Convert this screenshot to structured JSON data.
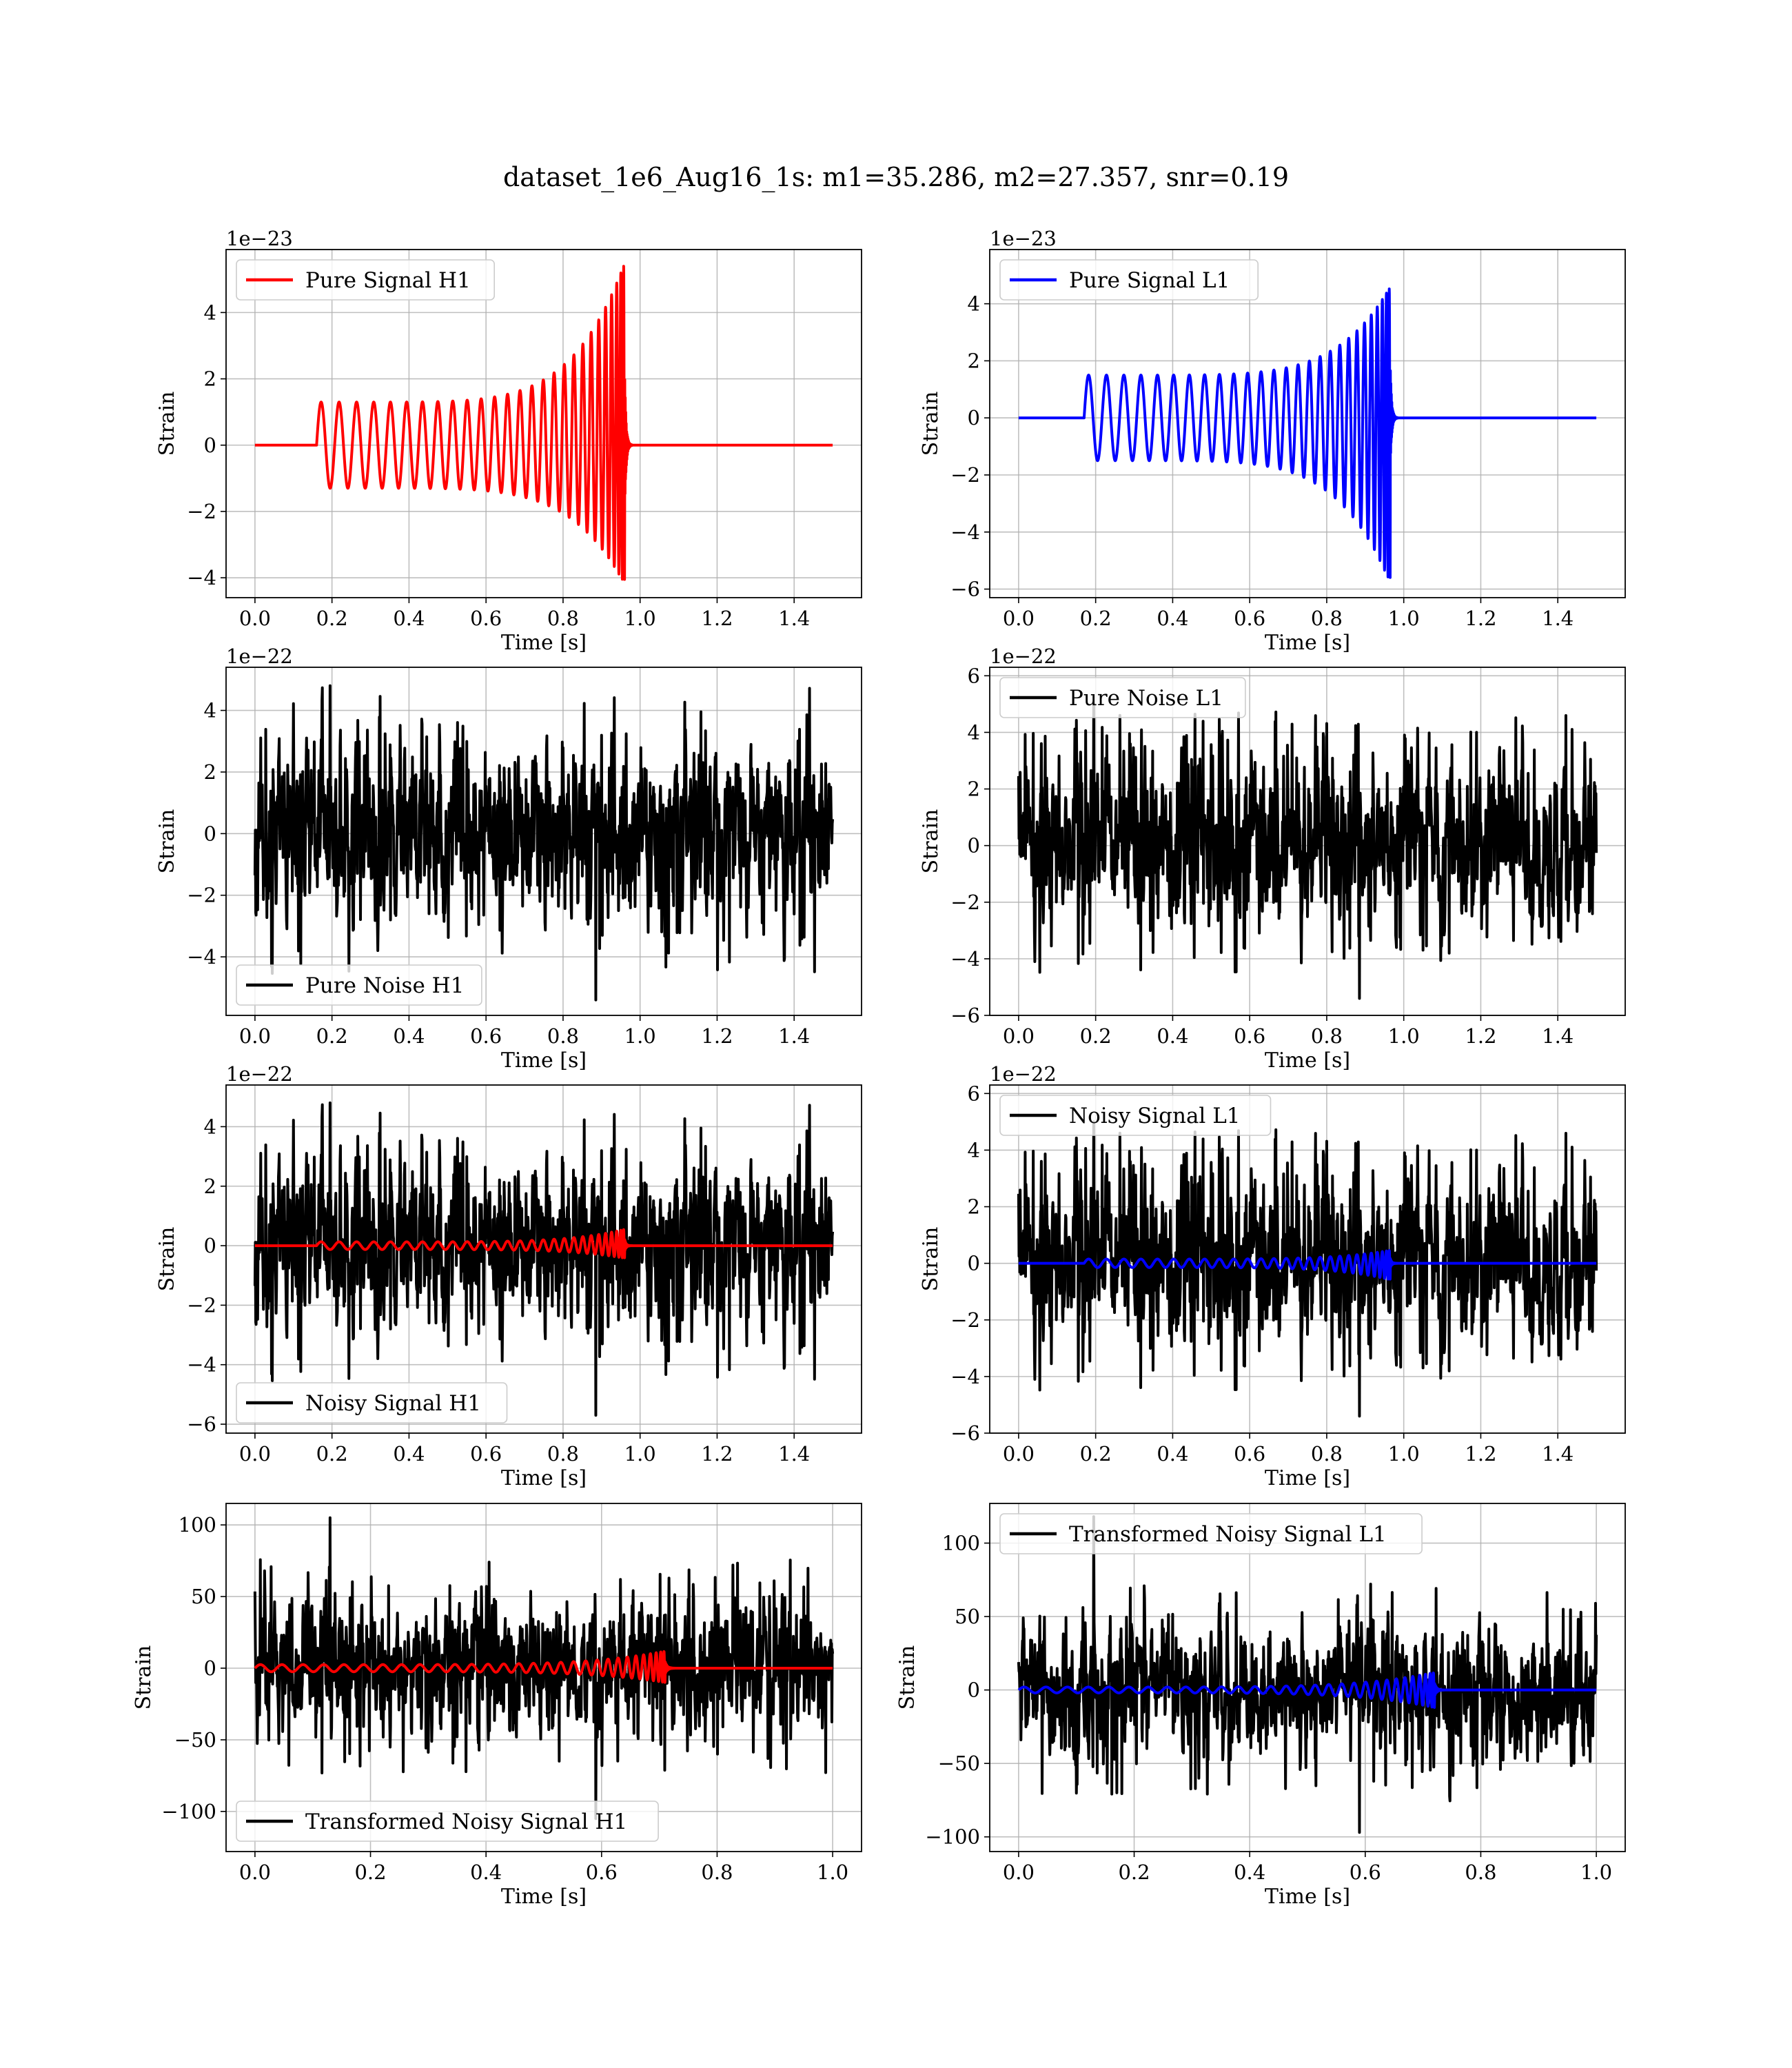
{
  "figure": {
    "title": "dataset_1e6_Aug16_1s: m1=35.286, m2=27.357, snr=0.19"
  },
  "chart_data": [
    {
      "type": "line",
      "title": "",
      "xlabel": "Time [s]",
      "ylabel": "Strain",
      "offset_text": "1e−23",
      "xlim": [
        -0.075,
        1.575
      ],
      "ylim": [
        -4.6,
        5.9
      ],
      "xticks": [
        0.0,
        0.2,
        0.4,
        0.6,
        0.8,
        1.0,
        1.2,
        1.4
      ],
      "xtick_labels": [
        "0.0",
        "0.2",
        "0.4",
        "0.6",
        "0.8",
        "1.0",
        "1.2",
        "1.4"
      ],
      "yticks": [
        -4,
        -2,
        0,
        2,
        4
      ],
      "ytick_labels": [
        "−4",
        "−2",
        "0",
        "2",
        "4"
      ],
      "grid": true,
      "legend_position": "upper left",
      "series": [
        {
          "name": "Pure Signal H1",
          "color": "#ff0000",
          "kind": "chirp",
          "t_start": 0.16,
          "t_merge": 0.96,
          "t_end": 1.5,
          "amp_start": 1.3,
          "amp_peak": 5.5,
          "amp_min_peak": -4.2,
          "cycles": 27
        }
      ]
    },
    {
      "type": "line",
      "title": "",
      "xlabel": "Time [s]",
      "ylabel": "Strain",
      "offset_text": "1e−23",
      "xlim": [
        -0.075,
        1.575
      ],
      "ylim": [
        -6.3,
        5.9
      ],
      "xticks": [
        0.0,
        0.2,
        0.4,
        0.6,
        0.8,
        1.0,
        1.2,
        1.4
      ],
      "xtick_labels": [
        "0.0",
        "0.2",
        "0.4",
        "0.6",
        "0.8",
        "1.0",
        "1.2",
        "1.4"
      ],
      "yticks": [
        -6,
        -4,
        -2,
        0,
        2,
        4
      ],
      "ytick_labels": [
        "−6",
        "−4",
        "−2",
        "0",
        "2",
        "4"
      ],
      "grid": true,
      "legend_position": "upper left",
      "series": [
        {
          "name": "Pure Signal L1",
          "color": "#0000ff",
          "kind": "chirp",
          "t_start": 0.17,
          "t_merge": 0.965,
          "t_end": 1.5,
          "amp_start": 1.5,
          "amp_peak": 4.6,
          "amp_min_peak": -5.8,
          "cycles": 27
        }
      ]
    },
    {
      "type": "line",
      "title": "",
      "xlabel": "Time [s]",
      "ylabel": "Strain",
      "offset_text": "1e−22",
      "xlim": [
        -0.075,
        1.575
      ],
      "ylim": [
        -5.9,
        5.4
      ],
      "xticks": [
        0.0,
        0.2,
        0.4,
        0.6,
        0.8,
        1.0,
        1.2,
        1.4
      ],
      "xtick_labels": [
        "0.0",
        "0.2",
        "0.4",
        "0.6",
        "0.8",
        "1.0",
        "1.2",
        "1.4"
      ],
      "yticks": [
        -4,
        -2,
        0,
        2,
        4
      ],
      "ytick_labels": [
        "−4",
        "−2",
        "0",
        "2",
        "4"
      ],
      "grid": true,
      "legend_position": "lower left",
      "series": [
        {
          "name": "Pure Noise H1",
          "color": "#000000",
          "kind": "noise",
          "t_end": 1.5,
          "amp": 2.4,
          "max": 4.8,
          "min": -5.4,
          "seed": 11
        }
      ]
    },
    {
      "type": "line",
      "title": "",
      "xlabel": "Time [s]",
      "ylabel": "Strain",
      "offset_text": "1e−22",
      "xlim": [
        -0.075,
        1.575
      ],
      "ylim": [
        -6.0,
        6.3
      ],
      "xticks": [
        0.0,
        0.2,
        0.4,
        0.6,
        0.8,
        1.0,
        1.2,
        1.4
      ],
      "xtick_labels": [
        "0.0",
        "0.2",
        "0.4",
        "0.6",
        "0.8",
        "1.0",
        "1.2",
        "1.4"
      ],
      "yticks": [
        -6,
        -4,
        -2,
        0,
        2,
        4,
        6
      ],
      "ytick_labels": [
        "−6",
        "−4",
        "−2",
        "0",
        "2",
        "4",
        "6"
      ],
      "grid": true,
      "legend_position": "upper left",
      "series": [
        {
          "name": "Pure Noise L1",
          "color": "#000000",
          "kind": "noise",
          "t_end": 1.5,
          "amp": 2.5,
          "max": 5.0,
          "min": -5.4,
          "seed": 23
        }
      ]
    },
    {
      "type": "line",
      "title": "",
      "xlabel": "Time [s]",
      "ylabel": "Strain",
      "offset_text": "1e−22",
      "xlim": [
        -0.075,
        1.575
      ],
      "ylim": [
        -6.3,
        5.4
      ],
      "xticks": [
        0.0,
        0.2,
        0.4,
        0.6,
        0.8,
        1.0,
        1.2,
        1.4
      ],
      "xtick_labels": [
        "0.0",
        "0.2",
        "0.4",
        "0.6",
        "0.8",
        "1.0",
        "1.2",
        "1.4"
      ],
      "yticks": [
        -6,
        -4,
        -2,
        0,
        2,
        4
      ],
      "ytick_labels": [
        "−6",
        "−4",
        "−2",
        "0",
        "2",
        "4"
      ],
      "grid": true,
      "legend_position": "lower left",
      "series": [
        {
          "name": "Noisy Signal H1",
          "color": "#000000",
          "kind": "noise",
          "t_end": 1.5,
          "amp": 2.4,
          "max": 4.8,
          "min": -5.7,
          "seed": 11
        },
        {
          "name": "",
          "color": "#ff0000",
          "kind": "chirp",
          "t_start": 0.16,
          "t_merge": 0.96,
          "t_end": 1.5,
          "amp_start": 0.13,
          "amp_peak": 0.55,
          "amp_min_peak": -0.42,
          "cycles": 27
        }
      ]
    },
    {
      "type": "line",
      "title": "",
      "xlabel": "Time [s]",
      "ylabel": "Strain",
      "offset_text": "1e−22",
      "xlim": [
        -0.075,
        1.575
      ],
      "ylim": [
        -6.0,
        6.3
      ],
      "xticks": [
        0.0,
        0.2,
        0.4,
        0.6,
        0.8,
        1.0,
        1.2,
        1.4
      ],
      "xtick_labels": [
        "0.0",
        "0.2",
        "0.4",
        "0.6",
        "0.8",
        "1.0",
        "1.2",
        "1.4"
      ],
      "yticks": [
        -6,
        -4,
        -2,
        0,
        2,
        4,
        6
      ],
      "ytick_labels": [
        "−6",
        "−4",
        "−2",
        "0",
        "2",
        "4",
        "6"
      ],
      "grid": true,
      "legend_position": "upper left",
      "series": [
        {
          "name": "Noisy Signal L1",
          "color": "#000000",
          "kind": "noise",
          "t_end": 1.5,
          "amp": 2.5,
          "max": 5.0,
          "min": -5.4,
          "seed": 23
        },
        {
          "name": "",
          "color": "#0000ff",
          "kind": "chirp",
          "t_start": 0.17,
          "t_merge": 0.965,
          "t_end": 1.5,
          "amp_start": 0.15,
          "amp_peak": 0.46,
          "amp_min_peak": -0.58,
          "cycles": 27
        }
      ]
    },
    {
      "type": "line",
      "title": "",
      "xlabel": "Time [s]",
      "ylabel": "Strain",
      "offset_text": "",
      "xlim": [
        -0.05,
        1.05
      ],
      "ylim": [
        -128,
        115
      ],
      "xticks": [
        0.0,
        0.2,
        0.4,
        0.6,
        0.8,
        1.0
      ],
      "xtick_labels": [
        "0.0",
        "0.2",
        "0.4",
        "0.6",
        "0.8",
        "1.0"
      ],
      "yticks": [
        -100,
        -50,
        0,
        50,
        100
      ],
      "ytick_labels": [
        "−100",
        "−50",
        "0",
        "50",
        "100"
      ],
      "grid": true,
      "legend_position": "lower left",
      "series": [
        {
          "name": "Transformed Noisy Signal H1",
          "color": "#000000",
          "kind": "noise",
          "t_end": 1.0,
          "amp": 40,
          "max": 105,
          "min": -105,
          "seed": 37
        },
        {
          "name": "",
          "color": "#ff0000",
          "kind": "chirp",
          "t_start": 0.0,
          "t_merge": 0.71,
          "t_end": 1.0,
          "amp_start": 2.5,
          "amp_peak": 12,
          "amp_min_peak": -10,
          "cycles": 30
        }
      ]
    },
    {
      "type": "line",
      "title": "",
      "xlabel": "Time [s]",
      "ylabel": "Strain",
      "offset_text": "",
      "xlim": [
        -0.05,
        1.05
      ],
      "ylim": [
        -110,
        127
      ],
      "xticks": [
        0.0,
        0.2,
        0.4,
        0.6,
        0.8,
        1.0
      ],
      "xtick_labels": [
        "0.0",
        "0.2",
        "0.4",
        "0.6",
        "0.8",
        "1.0"
      ],
      "yticks": [
        -100,
        -50,
        0,
        50,
        100
      ],
      "ytick_labels": [
        "−100",
        "−50",
        "0",
        "50",
        "100"
      ],
      "grid": true,
      "legend_position": "upper left",
      "series": [
        {
          "name": "Transformed Noisy Signal L1",
          "color": "#000000",
          "kind": "noise",
          "t_end": 1.0,
          "amp": 38,
          "max": 118,
          "min": -97,
          "seed": 53
        },
        {
          "name": "",
          "color": "#0000ff",
          "kind": "chirp",
          "t_start": 0.0,
          "t_merge": 0.72,
          "t_end": 1.0,
          "amp_start": 2.0,
          "amp_peak": 12,
          "amp_min_peak": -12,
          "cycles": 30
        }
      ]
    }
  ]
}
